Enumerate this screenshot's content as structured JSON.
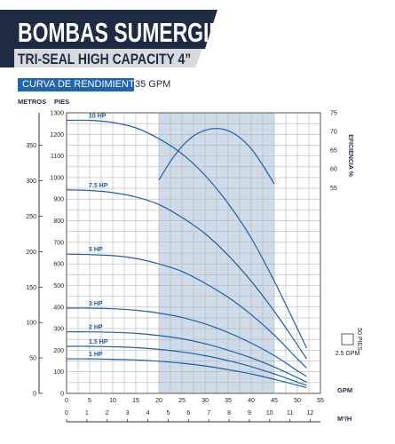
{
  "header": {
    "title": "BOMBAS SUMERGIBLES",
    "subtitle": "TRI-SEAL HIGH CAPACITY 4”",
    "curve_label": "CURVA DE RENDIMIENTO",
    "curve_gpm": "35 GPM"
  },
  "colors": {
    "banner": "#1f2a44",
    "banner_accent": "#1f64ad",
    "curve": "#1f5fa8",
    "efficiency_band": "#cfdbe8",
    "grid": "#b4b4b4",
    "label": "#1c5aa3"
  },
  "chart_data": {
    "type": "line",
    "x_axis": {
      "label": "GPM",
      "range": [
        0,
        55
      ],
      "ticks": [
        0,
        5,
        10,
        15,
        20,
        25,
        30,
        35,
        40,
        45,
        50,
        55
      ]
    },
    "x2_axis": {
      "label": "M³/H",
      "range": [
        0,
        12.5
      ],
      "ticks": [
        0,
        1,
        2,
        3,
        4,
        5,
        6,
        7,
        8,
        9,
        10,
        11,
        12
      ]
    },
    "y_axis": {
      "label": "PIES",
      "range": [
        0,
        1300
      ],
      "ticks": [
        0,
        100,
        200,
        300,
        400,
        500,
        600,
        700,
        800,
        900,
        1000,
        1100,
        1200,
        1300
      ]
    },
    "y_metric_axis": {
      "label": "METROS",
      "range": [
        0,
        396
      ],
      "ticks": [
        0,
        50,
        100,
        150,
        200,
        250,
        300,
        350
      ]
    },
    "y2_axis": {
      "label": "EFICIENCIA %",
      "range": [
        0,
        75
      ],
      "ticks": [
        55,
        60,
        65,
        70,
        75
      ]
    },
    "efficiency_band": {
      "x_range": [
        20,
        45
      ]
    },
    "series": [
      {
        "name": "10 HP",
        "x": [
          0,
          5,
          10,
          15,
          20,
          25,
          30,
          35,
          40,
          45,
          50,
          52
        ],
        "y": [
          1265,
          1265,
          1255,
          1230,
          1180,
          1110,
          1010,
          880,
          720,
          520,
          300,
          210
        ]
      },
      {
        "name": "7.5 HP",
        "x": [
          0,
          5,
          10,
          15,
          20,
          25,
          30,
          35,
          40,
          45,
          50,
          52
        ],
        "y": [
          943,
          940,
          930,
          910,
          875,
          815,
          740,
          640,
          520,
          380,
          225,
          160
        ]
      },
      {
        "name": "5 HP",
        "x": [
          0,
          5,
          10,
          15,
          20,
          25,
          30,
          35,
          40,
          45,
          50,
          52
        ],
        "y": [
          645,
          643,
          638,
          625,
          600,
          565,
          510,
          445,
          365,
          270,
          160,
          118
        ]
      },
      {
        "name": "3 HP",
        "x": [
          0,
          5,
          10,
          15,
          20,
          25,
          30,
          35,
          40,
          45,
          50,
          52
        ],
        "y": [
          395,
          395,
          392,
          385,
          372,
          352,
          322,
          282,
          233,
          175,
          105,
          78
        ]
      },
      {
        "name": "2 HP",
        "x": [
          0,
          5,
          10,
          15,
          20,
          25,
          30,
          35,
          40,
          45,
          50,
          52
        ],
        "y": [
          285,
          285,
          283,
          278,
          268,
          253,
          230,
          200,
          165,
          122,
          73,
          52
        ]
      },
      {
        "name": "1.5 HP",
        "x": [
          0,
          5,
          10,
          15,
          20,
          25,
          30,
          35,
          40,
          45,
          50,
          52
        ],
        "y": [
          218,
          218,
          216,
          212,
          204,
          192,
          175,
          152,
          124,
          90,
          52,
          38
        ]
      },
      {
        "name": "1 HP",
        "x": [
          0,
          5,
          10,
          15,
          20,
          25,
          30,
          35,
          40,
          45,
          50,
          52
        ],
        "y": [
          160,
          160,
          158,
          155,
          149,
          140,
          127,
          110,
          90,
          65,
          38,
          27
        ]
      }
    ],
    "efficiency_curve": {
      "x": [
        20,
        22.5,
        25,
        27.5,
        30,
        32.5,
        35,
        37.5,
        40,
        42.5,
        45
      ],
      "y": [
        57,
        62,
        66,
        68.8,
        70.3,
        70.8,
        70.2,
        68.4,
        65.4,
        61,
        56
      ]
    },
    "scale_key": {
      "width_label": "2.5 GPM",
      "height_label": "50 PIES"
    }
  }
}
